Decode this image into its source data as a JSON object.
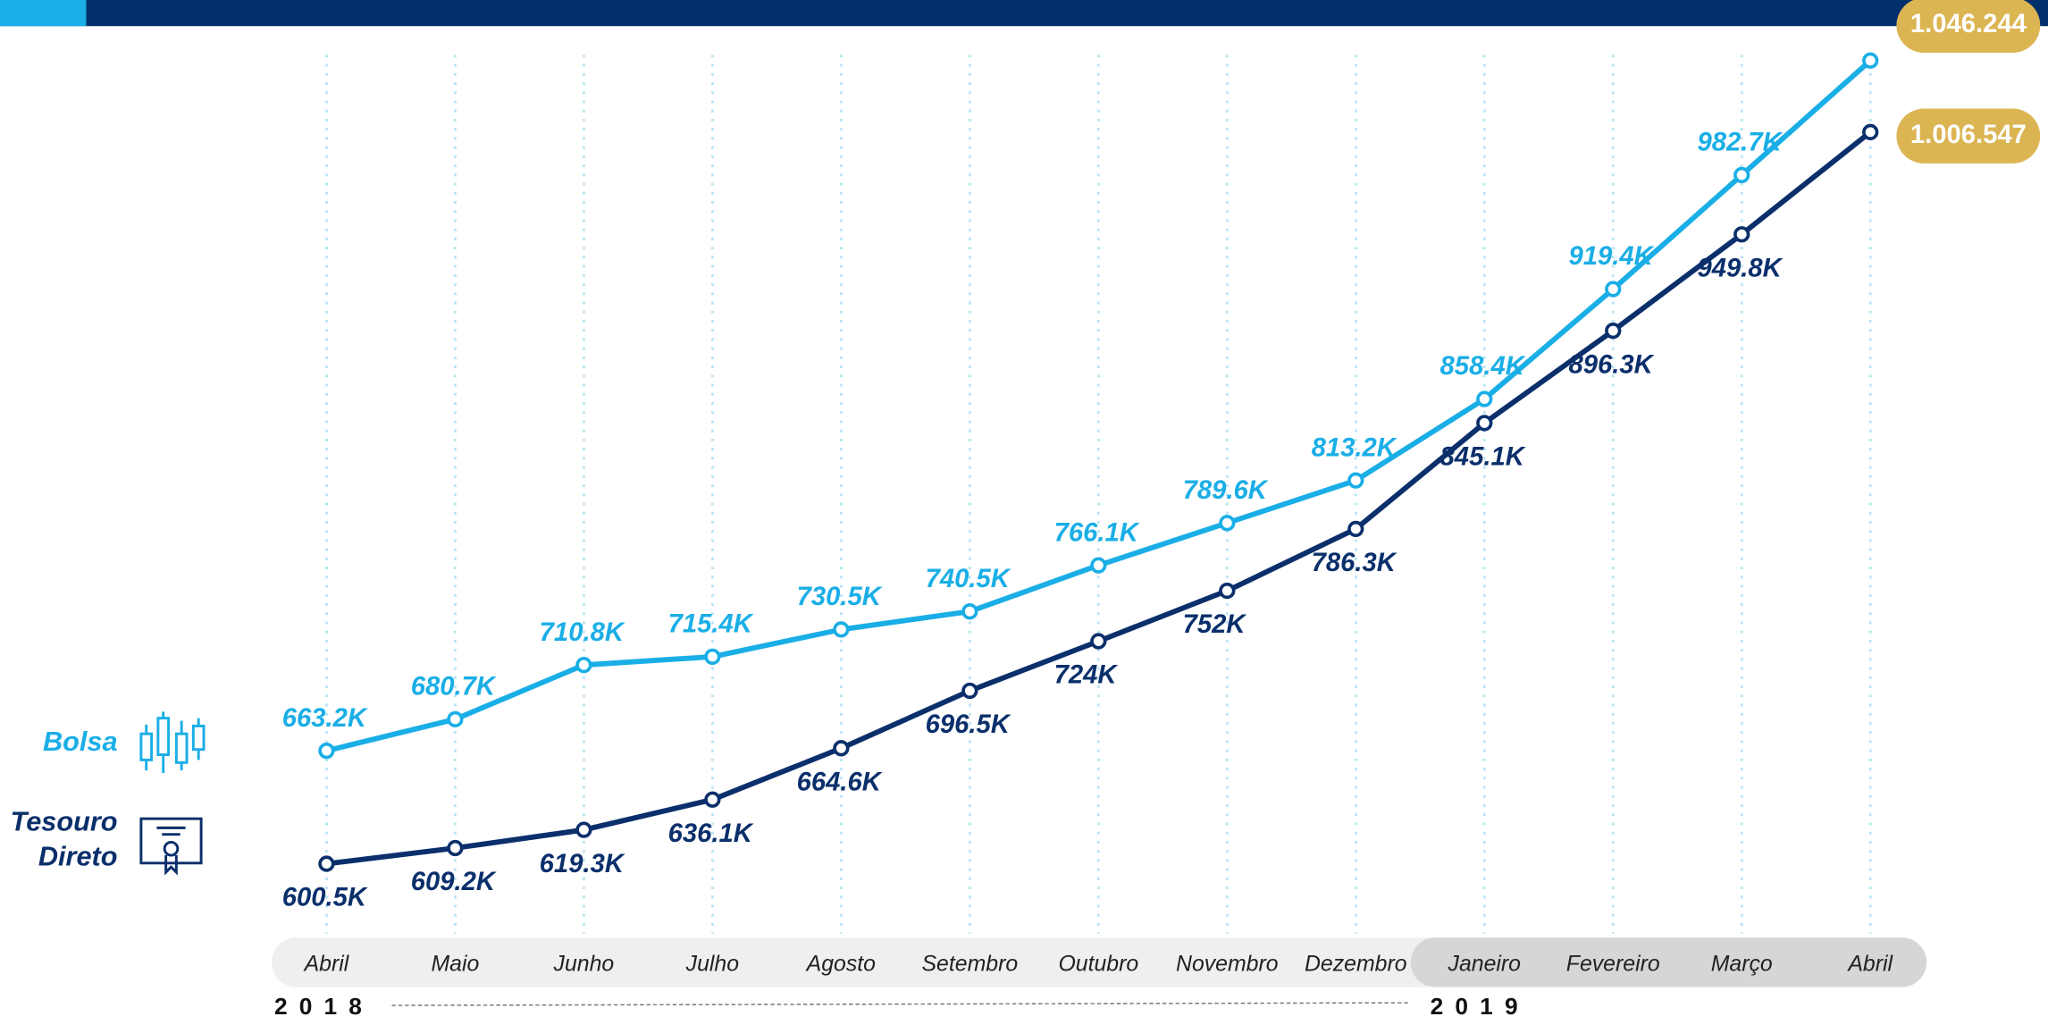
{
  "chart_data": {
    "type": "line",
    "categories": [
      "Abril",
      "Maio",
      "Junho",
      "Julho",
      "Agosto",
      "Setembro",
      "Outubro",
      "Novembro",
      "Dezembro",
      "Janeiro",
      "Fevereiro",
      "Março",
      "Abril"
    ],
    "years": [
      "2018",
      "2019"
    ],
    "series": [
      {
        "name": "Bolsa",
        "color": "#1aaee6",
        "values": [
          663.2,
          680.7,
          710.8,
          715.4,
          730.5,
          740.5,
          766.1,
          789.6,
          813.2,
          858.4,
          919.4,
          982.7,
          1046.244
        ],
        "value_labels": [
          "663.2K",
          "680.7K",
          "710.8K",
          "715.4K",
          "730.5K",
          "740.5K",
          "766.1K",
          "789.6K",
          "813.2K",
          "858.4K",
          "919.4K",
          "982.7K",
          "1.046.244"
        ]
      },
      {
        "name": "Tesouro Direto",
        "color": "#0a2f6b",
        "values": [
          600.5,
          609.2,
          619.3,
          636.1,
          664.6,
          696.5,
          724,
          752,
          786.3,
          845.1,
          896.3,
          949.8,
          1006.547
        ],
        "value_labels": [
          "600.5K",
          "609.2K",
          "619.3K",
          "636.1K",
          "664.6K",
          "696.5K",
          "724K",
          "752K",
          "786.3K",
          "845.1K",
          "896.3K",
          "949.8K",
          "1.006.547"
        ]
      }
    ],
    "ylim": [
      560,
      1050
    ],
    "highlight_color": "#dcb553"
  }
}
